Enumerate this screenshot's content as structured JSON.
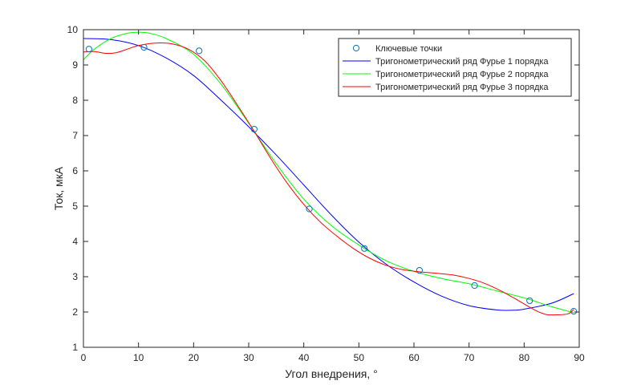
{
  "chart_data": {
    "type": "line",
    "xlabel": "Угол внедрения, °",
    "ylabel": "Ток, мкА",
    "xlim": [
      0,
      90
    ],
    "ylim": [
      1,
      10
    ],
    "x_ticks": [
      0,
      10,
      20,
      30,
      40,
      50,
      60,
      70,
      80,
      90
    ],
    "y_ticks": [
      1,
      2,
      3,
      4,
      5,
      6,
      7,
      8,
      9,
      10
    ],
    "grid": false,
    "legend_position": "top-right",
    "key_points": {
      "name": "Ключевые точки",
      "color": "#0072BD",
      "x": [
        1,
        11,
        21,
        31,
        41,
        51,
        61,
        71,
        81,
        89
      ],
      "y": [
        9.45,
        9.5,
        9.4,
        7.18,
        4.92,
        3.8,
        3.18,
        2.75,
        2.32,
        2.02
      ]
    },
    "series": [
      {
        "name": "Тригонометрический ряд Фурье 1 порядка",
        "color": "#0000FF",
        "x": [
          0,
          5,
          10,
          15,
          20,
          25,
          30,
          35,
          40,
          45,
          50,
          55,
          60,
          65,
          70,
          75,
          78,
          80,
          85,
          89
        ],
        "y": [
          9.75,
          9.72,
          9.55,
          9.2,
          8.7,
          8.0,
          7.25,
          6.45,
          5.6,
          4.75,
          3.98,
          3.35,
          2.85,
          2.45,
          2.18,
          2.06,
          2.05,
          2.08,
          2.25,
          2.52
        ]
      },
      {
        "name": "Тригонометрический ряд Фурье 2 порядка",
        "color": "#00FF00",
        "x": [
          0,
          2,
          5,
          8,
          10,
          12,
          15,
          20,
          25,
          30,
          35,
          40,
          45,
          50,
          55,
          60,
          65,
          70,
          75,
          80,
          85,
          89
        ],
        "y": [
          9.15,
          9.45,
          9.75,
          9.9,
          9.93,
          9.9,
          9.75,
          9.3,
          8.45,
          7.35,
          6.2,
          5.2,
          4.45,
          3.9,
          3.45,
          3.15,
          2.95,
          2.8,
          2.6,
          2.4,
          2.15,
          1.98
        ]
      },
      {
        "name": "Тригонометрический ряд Фурье 3 порядка",
        "color": "#FF0000",
        "x": [
          0,
          2,
          4,
          6,
          8,
          10,
          13,
          16,
          19,
          22,
          25,
          28,
          31,
          34,
          37,
          40,
          43,
          46,
          49,
          52,
          55,
          58,
          61,
          64,
          67,
          70,
          73,
          76,
          79,
          82,
          84,
          86,
          88,
          89
        ],
        "y": [
          9.37,
          9.38,
          9.33,
          9.35,
          9.45,
          9.55,
          9.62,
          9.6,
          9.45,
          9.12,
          8.55,
          7.85,
          7.12,
          6.35,
          5.65,
          5.05,
          4.55,
          4.15,
          3.8,
          3.52,
          3.32,
          3.2,
          3.14,
          3.1,
          3.05,
          2.95,
          2.8,
          2.58,
          2.32,
          2.05,
          1.93,
          1.92,
          1.95,
          2.07
        ]
      }
    ]
  }
}
